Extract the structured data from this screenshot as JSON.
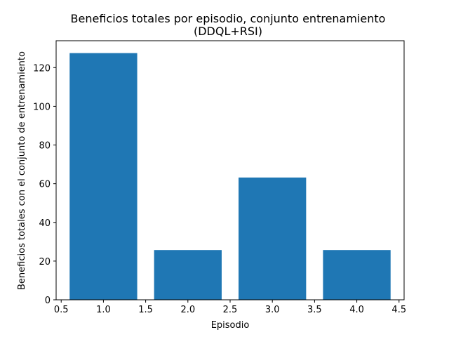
{
  "chart_data": {
    "type": "bar",
    "title_line1": "Beneficios totales por episodio, conjunto entrenamiento",
    "title_line2": "(DDQL+RSI)",
    "xlabel": "Episodio",
    "ylabel": "Beneficios totales con el conjunto de entrenamiento",
    "x": [
      1.0,
      2.0,
      3.0,
      4.0
    ],
    "values": [
      127.5,
      25.7,
      63.2,
      25.7
    ],
    "bar_width": 0.8,
    "xlim": [
      0.44,
      4.56
    ],
    "ylim": [
      0,
      133.9
    ],
    "x_ticks": [
      0.5,
      1.0,
      1.5,
      2.0,
      2.5,
      3.0,
      3.5,
      4.0,
      4.5
    ],
    "x_tick_labels": [
      "0.5",
      "1.0",
      "1.5",
      "2.0",
      "2.5",
      "3.0",
      "3.5",
      "4.0",
      "4.5"
    ],
    "y_ticks": [
      0,
      20,
      40,
      60,
      80,
      100,
      120
    ],
    "y_tick_labels": [
      "0",
      "20",
      "40",
      "60",
      "80",
      "100",
      "120"
    ],
    "bar_color": "#1f77b4",
    "grid": false,
    "legend": "none"
  }
}
